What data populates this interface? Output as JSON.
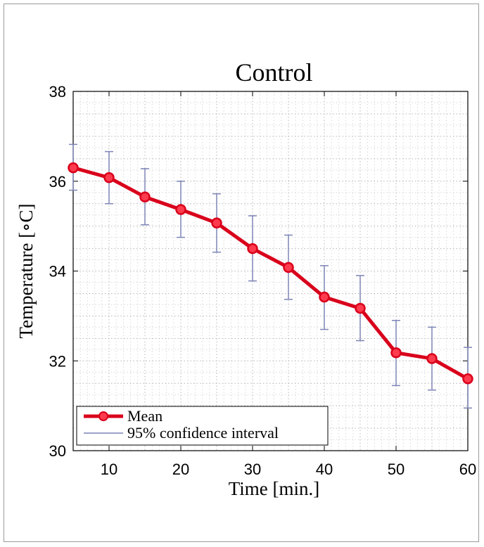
{
  "chart_data": {
    "type": "line",
    "title": "Control",
    "xlabel": "Time [min.]",
    "ylabel": "Temperature [∘C]",
    "xlim": [
      5,
      60
    ],
    "ylim": [
      30,
      38
    ],
    "xticks": [
      10,
      20,
      30,
      40,
      50,
      60
    ],
    "yticks": [
      30,
      32,
      34,
      36,
      38
    ],
    "grid": true,
    "legend_position": "bottom-left",
    "series": [
      {
        "name": "Mean",
        "color": "#d9001b",
        "x": [
          5,
          10,
          15,
          20,
          25,
          30,
          35,
          40,
          45,
          50,
          55,
          60
        ],
        "y": [
          36.3,
          36.08,
          35.65,
          35.37,
          35.07,
          34.5,
          34.08,
          33.42,
          33.17,
          32.18,
          32.05,
          31.6
        ]
      },
      {
        "name": "95% confidence interval",
        "color": "#7d84b5",
        "x": [
          5,
          10,
          15,
          20,
          25,
          30,
          35,
          40,
          45,
          50,
          55,
          60
        ],
        "lower": [
          35.8,
          35.5,
          35.03,
          34.75,
          34.42,
          33.78,
          33.37,
          32.7,
          32.45,
          31.45,
          31.35,
          30.95
        ],
        "upper": [
          36.82,
          36.66,
          36.28,
          36.0,
          35.72,
          35.23,
          34.8,
          34.12,
          33.9,
          32.9,
          32.75,
          32.3
        ]
      }
    ]
  }
}
